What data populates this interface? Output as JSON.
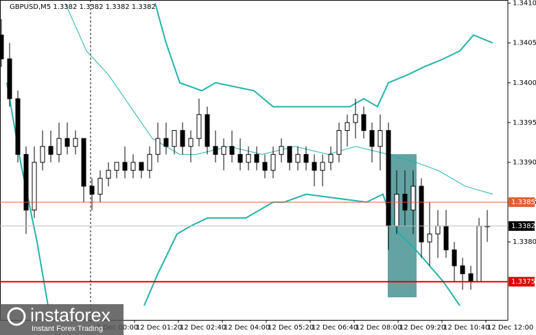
{
  "chart_data": {
    "type": "candlestick",
    "title": "GBPUSD,M5  1.3382 1.3382 1.3382 1.3382",
    "xlim": [
      -165,
      760
    ],
    "xticks": [
      {
        "value": 0,
        "label": "12 Dec 00:00"
      },
      {
        "value": 80,
        "label": "12 Dec 01:20"
      },
      {
        "value": 160,
        "label": "12 Dec 02:40"
      },
      {
        "value": 240,
        "label": "12 Dec 04:00"
      },
      {
        "value": 320,
        "label": "12 Dec 05:20"
      },
      {
        "value": 400,
        "label": "12 Dec 06:40"
      },
      {
        "value": 480,
        "label": "12 Dec 08:00"
      },
      {
        "value": 560,
        "label": "12 Dec 09:20"
      },
      {
        "value": 640,
        "label": "12 Dec 10:40"
      },
      {
        "value": 720,
        "label": "12 Dec 12:00"
      }
    ],
    "ylim": [
      1.33702,
      1.34104
    ],
    "yticks": [
      {
        "value": 1.341,
        "label": "1.3410"
      },
      1.3405,
      {
        "value": 1.34,
        "label": "1.3400"
      },
      1.3395,
      {
        "value": 1.339,
        "label": "1.3390"
      },
      1.3385,
      {
        "value": 1.338,
        "label": "1.3380"
      }
    ],
    "color": "#000000",
    "candles": {
      "x": [
        -162.5,
        -147.5,
        -132.5,
        -117.5,
        -102.5,
        -87.5,
        -72.5,
        -57.5,
        -42.5,
        -27.5,
        -12.5,
        2.5,
        17.5,
        32.5,
        47.5,
        62.5,
        77.5,
        92.5,
        107.5,
        122.5,
        137.5,
        152.5,
        167.5,
        182.5,
        197.5,
        212.5,
        227.5,
        242.5,
        257.5,
        272.5,
        287.5,
        302.5,
        317.5,
        332.5,
        347.5,
        362.5,
        377.5,
        392.5,
        407.5,
        422.5,
        437.5,
        452.5,
        467.5,
        482.5,
        497.5,
        512.5,
        527.5,
        542.5,
        557.5,
        572.5,
        587.5,
        602.5,
        617.5,
        632.5,
        647.5,
        662.5,
        677.5,
        692.5,
        707.5,
        722.5
      ],
      "open": [
        1.3406,
        1.3403,
        1.3398,
        1.3391,
        1.3384,
        1.339,
        1.3392,
        1.3391,
        1.3393,
        1.3392,
        1.3393,
        1.3387,
        1.3386,
        1.3388,
        1.3389,
        1.339,
        1.3389,
        1.339,
        1.3389,
        1.3391,
        1.3393,
        1.3392,
        1.3394,
        1.3392,
        1.3393,
        1.3396,
        1.3392,
        1.3391,
        1.3392,
        1.3391,
        1.339,
        1.3391,
        1.339,
        1.3389,
        1.3391,
        1.3392,
        1.339,
        1.3391,
        1.339,
        1.3389,
        1.339,
        1.3391,
        1.3394,
        1.3395,
        1.3396,
        1.3394,
        1.3392,
        1.3394,
        1.3382,
        1.3386,
        1.3384,
        1.3387,
        1.338,
        1.3381,
        1.3382,
        1.3379,
        1.3377,
        1.3376,
        1.3375,
        1.3382
      ],
      "high": [
        1.3408,
        1.3405,
        1.3399,
        1.3392,
        1.3392,
        1.3394,
        1.3394,
        1.3395,
        1.3395,
        1.3394,
        1.3393,
        1.3388,
        1.3389,
        1.339,
        1.339,
        1.3392,
        1.3391,
        1.339,
        1.3392,
        1.3395,
        1.3395,
        1.3394,
        1.3395,
        1.3394,
        1.3398,
        1.3397,
        1.3394,
        1.3393,
        1.3394,
        1.3393,
        1.3392,
        1.3392,
        1.3391,
        1.3392,
        1.3393,
        1.3392,
        1.3392,
        1.3392,
        1.3391,
        1.3391,
        1.3392,
        1.3395,
        1.3396,
        1.3398,
        1.3397,
        1.3395,
        1.3396,
        1.3395,
        1.3389,
        1.3389,
        1.3389,
        1.3388,
        1.3385,
        1.3384,
        1.3384,
        1.338,
        1.3378,
        1.3377,
        1.3383,
        1.3384
      ],
      "low": [
        1.3402,
        1.3397,
        1.339,
        1.3381,
        1.3383,
        1.3389,
        1.339,
        1.339,
        1.3391,
        1.3391,
        1.3385,
        1.3384,
        1.3385,
        1.3387,
        1.3388,
        1.3388,
        1.3388,
        1.3388,
        1.3388,
        1.339,
        1.3391,
        1.3391,
        1.3391,
        1.339,
        1.3392,
        1.3391,
        1.339,
        1.3389,
        1.339,
        1.3389,
        1.3389,
        1.3389,
        1.3388,
        1.3388,
        1.339,
        1.3389,
        1.3389,
        1.3389,
        1.3387,
        1.3387,
        1.3389,
        1.339,
        1.3392,
        1.3393,
        1.3393,
        1.339,
        1.3389,
        1.3379,
        1.3381,
        1.3382,
        1.3381,
        1.3378,
        1.3377,
        1.3378,
        1.3378,
        1.3375,
        1.3374,
        1.3374,
        1.3375,
        1.338
      ],
      "close": [
        1.3403,
        1.3398,
        1.3391,
        1.3384,
        1.339,
        1.3392,
        1.3391,
        1.3393,
        1.3392,
        1.3393,
        1.3387,
        1.3386,
        1.3388,
        1.3389,
        1.339,
        1.3389,
        1.339,
        1.3389,
        1.3391,
        1.3393,
        1.3392,
        1.3394,
        1.3392,
        1.3393,
        1.3396,
        1.3392,
        1.3391,
        1.3392,
        1.3391,
        1.339,
        1.3391,
        1.339,
        1.3389,
        1.3391,
        1.3392,
        1.339,
        1.3391,
        1.339,
        1.3389,
        1.339,
        1.3391,
        1.3394,
        1.3395,
        1.3396,
        1.3394,
        1.3392,
        1.3394,
        1.3382,
        1.3386,
        1.3384,
        1.3387,
        1.338,
        1.3381,
        1.3382,
        1.3379,
        1.3377,
        1.3376,
        1.3375,
        1.3382,
        1.3382
      ]
    },
    "lines": [
      {
        "color": "#20b2aa",
        "width": 2,
        "x": [
          117.5,
          137.5,
          162.5,
          202.5,
          227.5,
          297.5,
          332.5,
          472.5,
          497.5,
          522.5,
          542.5,
          577.5,
          607.5,
          642.5,
          672.5,
          697.5,
          732.5
        ],
        "values": [
          1.341,
          1.3405,
          1.34,
          1.3399,
          1.34,
          1.3399,
          1.3397,
          1.3397,
          1.3398,
          1.3397,
          1.34,
          1.3401,
          1.3402,
          1.3403,
          1.3404,
          1.3406,
          1.3405
        ]
      },
      {
        "color": "#20b2aa",
        "width": 2,
        "x": [
          -152.5,
          -127.5,
          -97.5,
          -77.5,
          null,
          97.5,
          122.5,
          157.5,
          182.5,
          212.5,
          282.5,
          307.5,
          332.5,
          352.5,
          392.5,
          502.5,
          532.5,
          547.5,
          562.5,
          592.5,
          617.5,
          642.5,
          672.5
        ],
        "values": [
          1.34,
          1.339,
          1.338,
          1.3372,
          null,
          1.3372,
          1.3376,
          1.3381,
          1.3382,
          1.3383,
          1.3383,
          1.3384,
          1.3385,
          1.3385,
          1.3386,
          1.3385,
          1.3386,
          1.3383,
          1.3381,
          1.3379,
          1.3377,
          1.3375,
          1.3372
        ]
      },
      {
        "color": "#20b2aa",
        "width": 1,
        "x": [
          -46.25,
          -7.5,
          32.5,
          72.5,
          112.5,
          162.5,
          192.5,
          252.5,
          312.5,
          372.5,
          432.5,
          482.5,
          542.5,
          592.5,
          632.5,
          682.5,
          732.5
        ],
        "values": [
          1.341,
          1.3404,
          1.3401,
          1.3397,
          1.3393,
          1.3391,
          1.3391,
          1.3392,
          1.3391,
          1.3392,
          1.3391,
          1.3392,
          1.3391,
          1.339,
          1.3389,
          1.3387,
          1.3386
        ]
      }
    ],
    "levels": [
      {
        "value": 1.3385,
        "color": "#e06030"
      },
      {
        "value": 1.3375,
        "color": "#e00000"
      },
      {
        "value": 1.3382,
        "color": "#000000"
      }
    ]
  },
  "logo": {
    "name": "instaforex",
    "tagline": "Instant Forex Trading"
  }
}
